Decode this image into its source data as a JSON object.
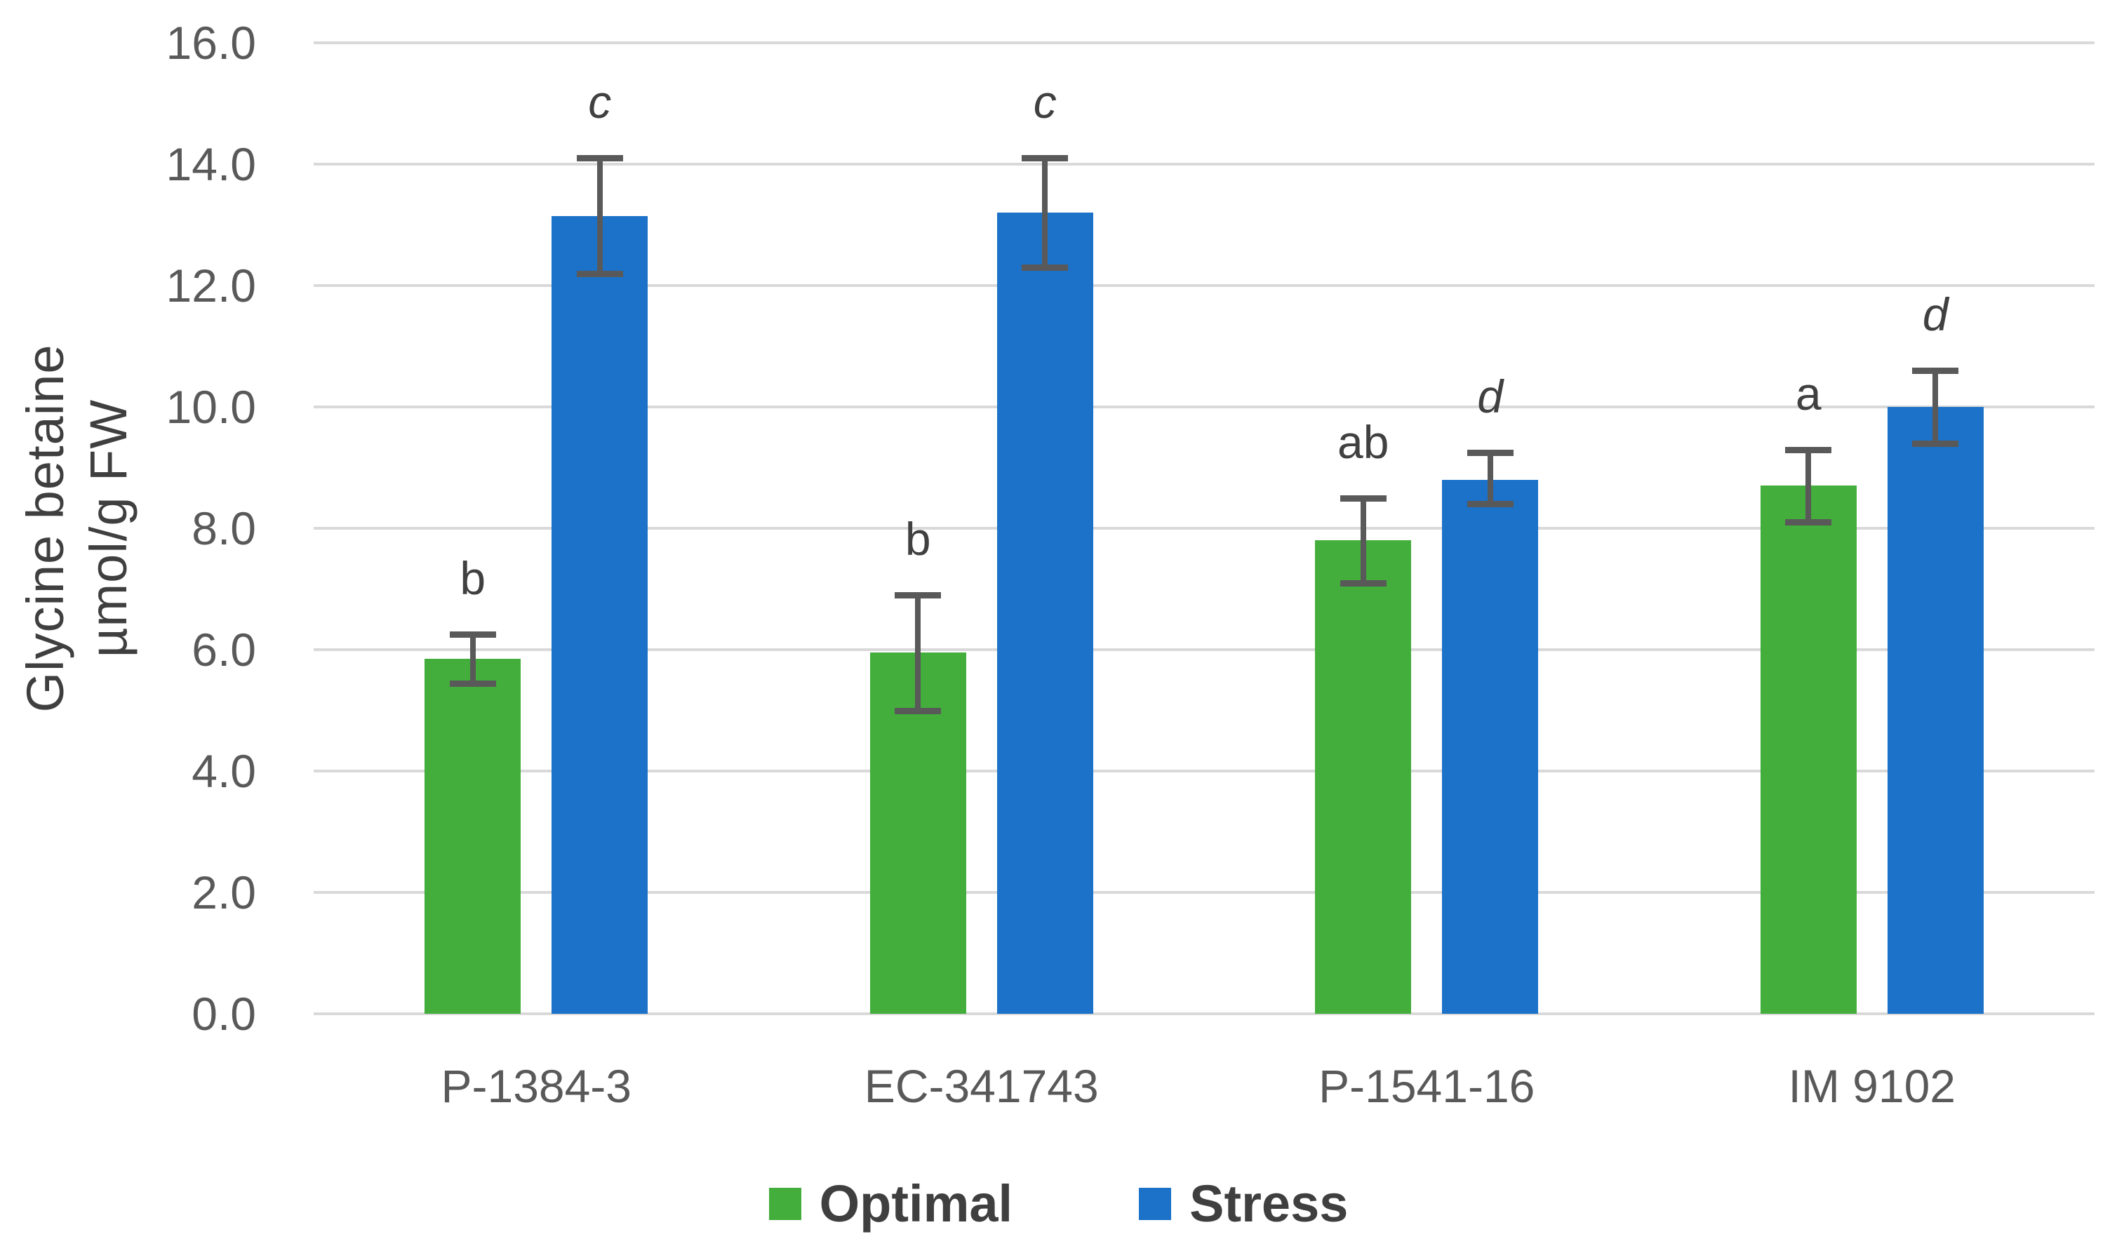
{
  "chart_data": {
    "type": "bar",
    "title": "",
    "categories": [
      "P-1384-3",
      "EC-341743",
      "P-1541-16",
      "IM 9102"
    ],
    "series": [
      {
        "name": "Optimal",
        "color": "#43ae3b",
        "values": [
          5.85,
          5.95,
          7.8,
          8.7
        ],
        "error_low": [
          5.45,
          5.0,
          7.1,
          8.1
        ],
        "error_high": [
          6.25,
          6.9,
          8.5,
          9.3
        ],
        "letters": [
          "b",
          "b",
          "ab",
          "a"
        ],
        "letters_italic": false
      },
      {
        "name": "Stress",
        "color": "#1b72c8",
        "values": [
          13.15,
          13.2,
          8.8,
          10.0
        ],
        "error_low": [
          12.2,
          12.3,
          8.4,
          9.4
        ],
        "error_high": [
          14.1,
          14.1,
          9.25,
          10.6
        ],
        "letters": [
          "c",
          "c",
          "d",
          "d"
        ],
        "letters_italic": true
      }
    ],
    "ylabel_lines": [
      "Glycine betaine",
      "µmol/g FW"
    ],
    "ylabel": "Glycine betaine µmol/g FW",
    "xlabel": "",
    "y_axis": {
      "min": 0,
      "max": 16,
      "step": 2,
      "tick_labels": [
        "0.0",
        "2.0",
        "4.0",
        "6.0",
        "8.0",
        "10.0",
        "12.0",
        "14.0",
        "16.0"
      ]
    },
    "grid": true,
    "legend_position": "bottom",
    "error_bar_color": "#595959",
    "gridline_color": "#d9d9d9",
    "text_color": "#595959"
  }
}
